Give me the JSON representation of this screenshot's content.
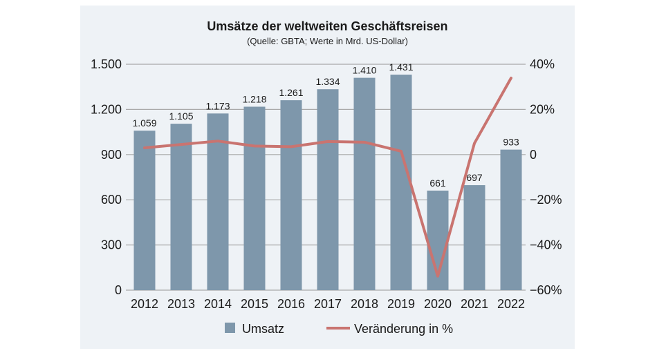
{
  "chart_data": {
    "type": "bar",
    "title": "Umsätze der weltweiten Geschäftsreisen",
    "subtitle": "(Quelle: GBTA; Werte in Mrd. US-Dollar)",
    "categories": [
      "2012",
      "2013",
      "2014",
      "2015",
      "2016",
      "2017",
      "2018",
      "2019",
      "2020",
      "2021",
      "2022"
    ],
    "series": [
      {
        "name": "Umsatz",
        "type": "bar",
        "axis": "left",
        "color": "#7e97ab",
        "values": [
          1059,
          1105,
          1173,
          1218,
          1261,
          1334,
          1410,
          1431,
          661,
          697,
          933
        ],
        "labels": [
          "1.059",
          "1.105",
          "1.173",
          "1.218",
          "1.261",
          "1.334",
          "1.410",
          "1.431",
          "661",
          "697",
          "933"
        ]
      },
      {
        "name": "Veränderung in %",
        "type": "line",
        "axis": "right",
        "color": "#c97470",
        "values": [
          3,
          4.5,
          6,
          3.8,
          3.5,
          5.8,
          5.5,
          1.5,
          -53.8,
          5,
          33.9
        ]
      }
    ],
    "y_left": {
      "min": 0,
      "max": 1500,
      "ticks": [
        0,
        300,
        600,
        900,
        1200,
        1500
      ],
      "tick_labels": [
        "0",
        "300",
        "600",
        "900",
        "1.200",
        "1.500"
      ]
    },
    "y_right": {
      "min": -60,
      "max": 40,
      "ticks": [
        -60,
        -40,
        -20,
        0,
        20,
        40
      ],
      "tick_labels": [
        "−60%",
        "−40%",
        "−20%",
        "0",
        "20%",
        "40%"
      ]
    },
    "grid": true,
    "legend_position": "bottom",
    "colors": {
      "background": "#eef2f6",
      "grid": "#a9a9a9",
      "text": "#1a1a1a"
    }
  }
}
